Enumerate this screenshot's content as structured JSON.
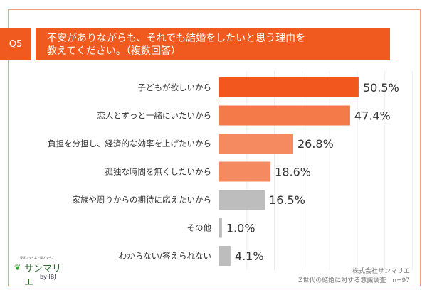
{
  "header": {
    "question": "Q5",
    "title_line1": "不安がありながらも、それでも結婚をしたいと思う理由を",
    "title_line2": "教えてください。（複数回答）"
  },
  "chart_data": {
    "type": "bar",
    "orientation": "horizontal",
    "categories": [
      "子どもが欲しいから",
      "恋人とずっと一緒にいたいから",
      "負担を分担し、経済的な効率を上げたいから",
      "孤独な時間を無くしたいから",
      "家族や周りからの期待に応えたいから",
      "その他",
      "わからない/答えられない"
    ],
    "values": [
      50.5,
      47.4,
      26.8,
      18.6,
      16.5,
      1.0,
      4.1
    ],
    "labels": [
      "50.5%",
      "47.4%",
      "26.8%",
      "18.6%",
      "16.5%",
      "1.0%",
      "4.1%"
    ],
    "colors": [
      "#f2581e",
      "#f47a4a",
      "#f58a60",
      "#f58a60",
      "#bdbdbd",
      "#bdbdbd",
      "#bdbdbd"
    ],
    "xlim": [
      0,
      70
    ],
    "grid": true,
    "unit": "%"
  },
  "logo": {
    "tagline": "東証プライム上場グループ",
    "name": "サンマリエ",
    "by": "by IBJ"
  },
  "footer": {
    "company": "株式会社サンマリエ",
    "survey": "Z世代の結婚に対する意識調査｜n=97"
  }
}
